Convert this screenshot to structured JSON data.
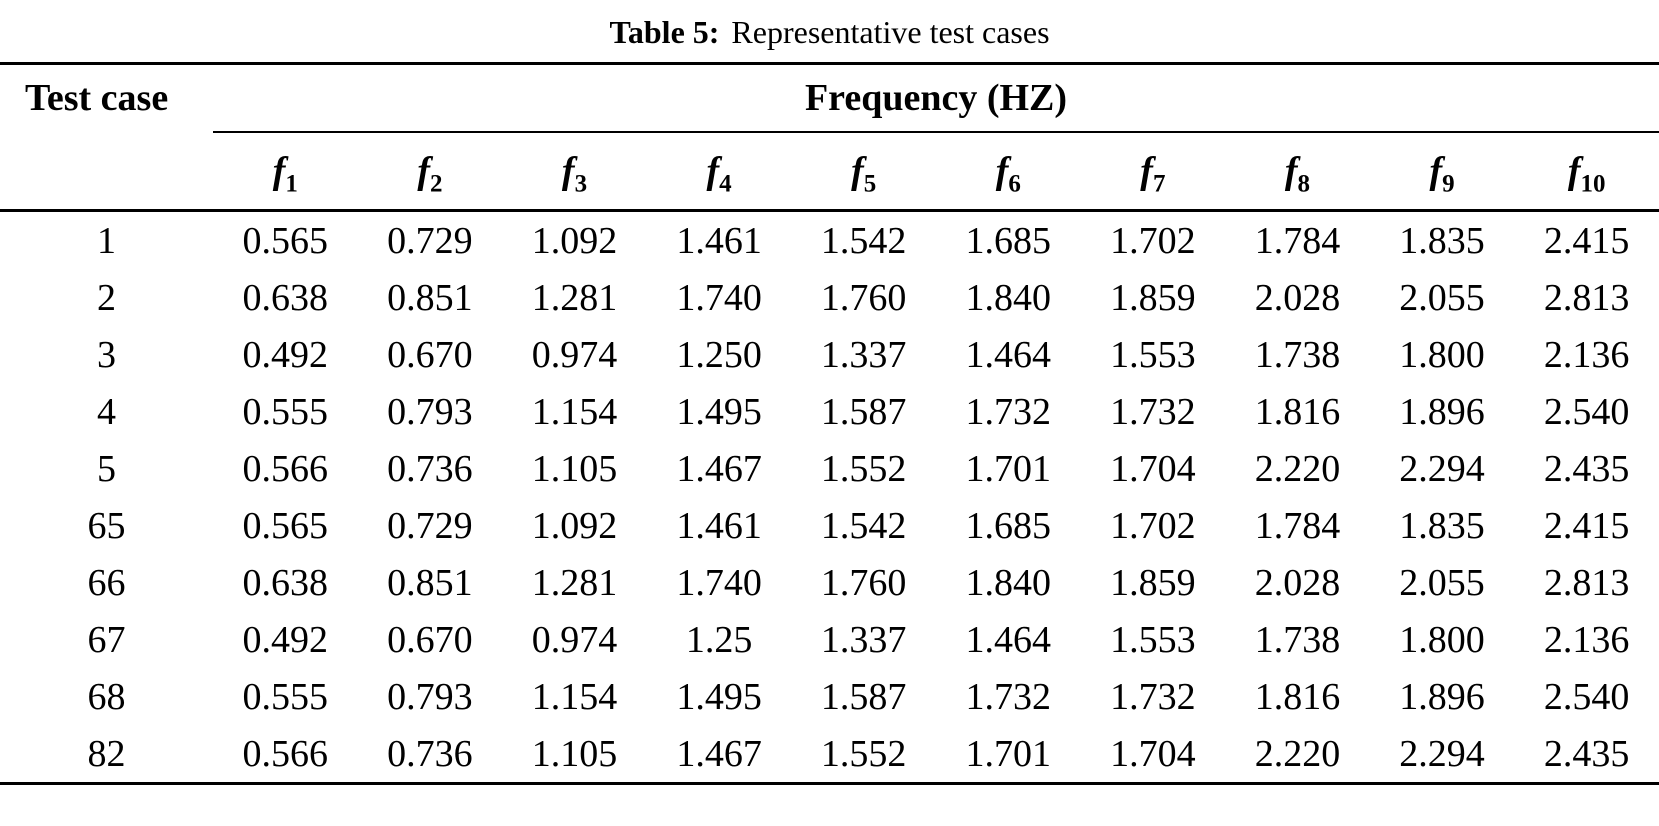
{
  "page": {
    "background": "#ffffff",
    "text_color": "#000000",
    "rule_color": "#000000"
  },
  "table": {
    "title_label": "Table 5:",
    "title_text": "Representative test cases",
    "col_header": "Test case",
    "group_header": "Frequency (HZ)",
    "freq_base": "f",
    "freq_subscripts": [
      "1",
      "2",
      "3",
      "4",
      "5",
      "6",
      "7",
      "8",
      "9",
      "10"
    ],
    "rows": [
      {
        "test_case": "1",
        "values": [
          "0.565",
          "0.729",
          "1.092",
          "1.461",
          "1.542",
          "1.685",
          "1.702",
          "1.784",
          "1.835",
          "2.415"
        ]
      },
      {
        "test_case": "2",
        "values": [
          "0.638",
          "0.851",
          "1.281",
          "1.740",
          "1.760",
          "1.840",
          "1.859",
          "2.028",
          "2.055",
          "2.813"
        ]
      },
      {
        "test_case": "3",
        "values": [
          "0.492",
          "0.670",
          "0.974",
          "1.250",
          "1.337",
          "1.464",
          "1.553",
          "1.738",
          "1.800",
          "2.136"
        ]
      },
      {
        "test_case": "4",
        "values": [
          "0.555",
          "0.793",
          "1.154",
          "1.495",
          "1.587",
          "1.732",
          "1.732",
          "1.816",
          "1.896",
          "2.540"
        ]
      },
      {
        "test_case": "5",
        "values": [
          "0.566",
          "0.736",
          "1.105",
          "1.467",
          "1.552",
          "1.701",
          "1.704",
          "2.220",
          "2.294",
          "2.435"
        ]
      },
      {
        "test_case": "65",
        "values": [
          "0.565",
          "0.729",
          "1.092",
          "1.461",
          "1.542",
          "1.685",
          "1.702",
          "1.784",
          "1.835",
          "2.415"
        ]
      },
      {
        "test_case": "66",
        "values": [
          "0.638",
          "0.851",
          "1.281",
          "1.740",
          "1.760",
          "1.840",
          "1.859",
          "2.028",
          "2.055",
          "2.813"
        ]
      },
      {
        "test_case": "67",
        "values": [
          "0.492",
          "0.670",
          "0.974",
          "1.25",
          "1.337",
          "1.464",
          "1.553",
          "1.738",
          "1.800",
          "2.136"
        ]
      },
      {
        "test_case": "68",
        "values": [
          "0.555",
          "0.793",
          "1.154",
          "1.495",
          "1.587",
          "1.732",
          "1.732",
          "1.816",
          "1.896",
          "2.540"
        ]
      },
      {
        "test_case": "82",
        "values": [
          "0.566",
          "0.736",
          "1.105",
          "1.467",
          "1.552",
          "1.701",
          "1.704",
          "2.220",
          "2.294",
          "2.435"
        ]
      }
    ]
  }
}
